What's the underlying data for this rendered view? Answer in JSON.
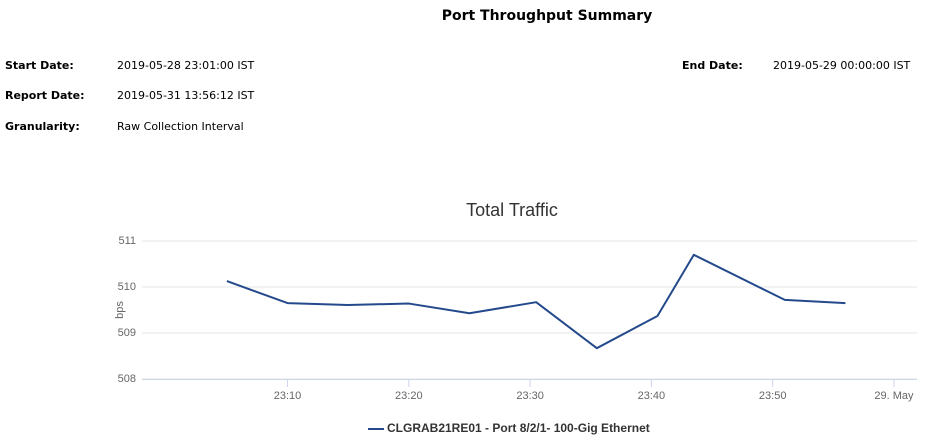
{
  "report": {
    "title": "Port Throughput Summary",
    "fields": [
      {
        "label": "Start Date:",
        "value": "2019-05-28 23:01:00 IST"
      },
      {
        "label": "Report Date:",
        "value": "2019-05-31 13:56:12 IST"
      },
      {
        "label": "Granularity:",
        "value": "Raw Collection Interval"
      },
      {
        "label": "End Date:",
        "value": "2019-05-29 00:00:00 IST"
      }
    ]
  },
  "chart_data": {
    "type": "line",
    "title": "Total Traffic",
    "y_label": "bps",
    "x": [
      5,
      10,
      15,
      20,
      25,
      30.5,
      35.5,
      40.5,
      43.5,
      51,
      56
    ],
    "series": [
      {
        "name": "CLGRAB21RE01 - Port 8/2/1- 100-Gig Ethernet",
        "color": "#244a8c",
        "values": [
          510.13,
          509.65,
          509.61,
          509.64,
          509.43,
          509.67,
          508.67,
          509.37,
          510.7,
          509.72,
          509.65
        ]
      }
    ],
    "xlim": [
      -2,
      61.9
    ],
    "xticks": [
      {
        "value": 10,
        "label": "23:10"
      },
      {
        "value": 20,
        "label": "23:20"
      },
      {
        "value": 30,
        "label": "23:30"
      },
      {
        "value": 40,
        "label": "23:40"
      },
      {
        "value": 50,
        "label": "23:50"
      },
      {
        "value": 60,
        "label": "29. May"
      }
    ],
    "ylim": [
      508,
      511
    ],
    "yticks": [
      508,
      509,
      510,
      511
    ],
    "grid": true
  }
}
